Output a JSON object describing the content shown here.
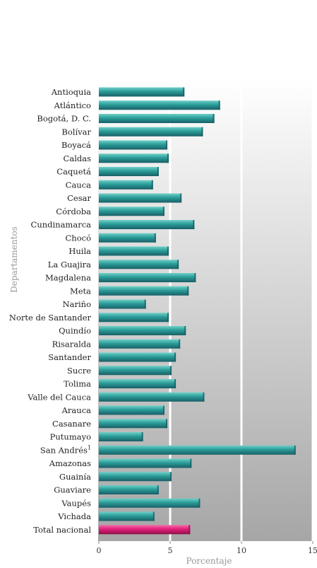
{
  "chart_data": {
    "type": "bar",
    "orientation": "horizontal",
    "xlabel": "Porcentaje",
    "ylabel": "Departamentos",
    "xlim": [
      0,
      15
    ],
    "xticks": [
      0,
      5,
      10,
      15
    ],
    "categories": [
      {
        "name": "Antioquia",
        "sup": ""
      },
      {
        "name": "Atlántico",
        "sup": ""
      },
      {
        "name": "Bogotá, D. C.",
        "sup": ""
      },
      {
        "name": "Bolívar",
        "sup": ""
      },
      {
        "name": "Boyacá",
        "sup": ""
      },
      {
        "name": "Caldas",
        "sup": ""
      },
      {
        "name": "Caquetá",
        "sup": ""
      },
      {
        "name": "Cauca",
        "sup": ""
      },
      {
        "name": "Cesar",
        "sup": ""
      },
      {
        "name": "Córdoba",
        "sup": ""
      },
      {
        "name": "Cundinamarca",
        "sup": ""
      },
      {
        "name": "Chocó",
        "sup": ""
      },
      {
        "name": "Huila",
        "sup": ""
      },
      {
        "name": "La Guajira",
        "sup": ""
      },
      {
        "name": "Magdalena",
        "sup": ""
      },
      {
        "name": "Meta",
        "sup": ""
      },
      {
        "name": "Nariño",
        "sup": ""
      },
      {
        "name": "Norte de Santander",
        "sup": ""
      },
      {
        "name": "Quindío",
        "sup": ""
      },
      {
        "name": "Risaralda",
        "sup": ""
      },
      {
        "name": "Santander",
        "sup": ""
      },
      {
        "name": "Sucre",
        "sup": ""
      },
      {
        "name": "Tolima",
        "sup": ""
      },
      {
        "name": "Valle del Cauca",
        "sup": ""
      },
      {
        "name": "Arauca",
        "sup": ""
      },
      {
        "name": "Casanare",
        "sup": ""
      },
      {
        "name": "Putumayo",
        "sup": ""
      },
      {
        "name": "San Andrés",
        "sup": "1"
      },
      {
        "name": "Amazonas",
        "sup": ""
      },
      {
        "name": "Guainía",
        "sup": ""
      },
      {
        "name": "Guaviare",
        "sup": ""
      },
      {
        "name": "Vaupés",
        "sup": ""
      },
      {
        "name": "Vichada",
        "sup": ""
      },
      {
        "name": "Total nacional",
        "sup": ""
      }
    ],
    "values": [
      6.0,
      8.5,
      8.1,
      7.3,
      4.8,
      4.9,
      4.2,
      3.8,
      5.8,
      4.6,
      6.7,
      4.0,
      4.9,
      5.6,
      6.8,
      6.3,
      3.3,
      4.9,
      6.1,
      5.7,
      5.4,
      5.1,
      5.4,
      7.4,
      4.6,
      4.8,
      3.1,
      13.8,
      6.5,
      5.1,
      4.2,
      7.1,
      3.9,
      6.4
    ],
    "highlight_category": "Total nacional",
    "colors": {
      "bar": "#2a9c98",
      "bar_dark": "#195f66",
      "bar_light": "#6fd0c8",
      "highlight": "#e0207a",
      "highlight_dark": "#8e1048",
      "highlight_light": "#f46aa8",
      "panel_top": "#ffffff",
      "panel_bottom": "#a6a6a6",
      "gridline": "#ffffff"
    }
  }
}
